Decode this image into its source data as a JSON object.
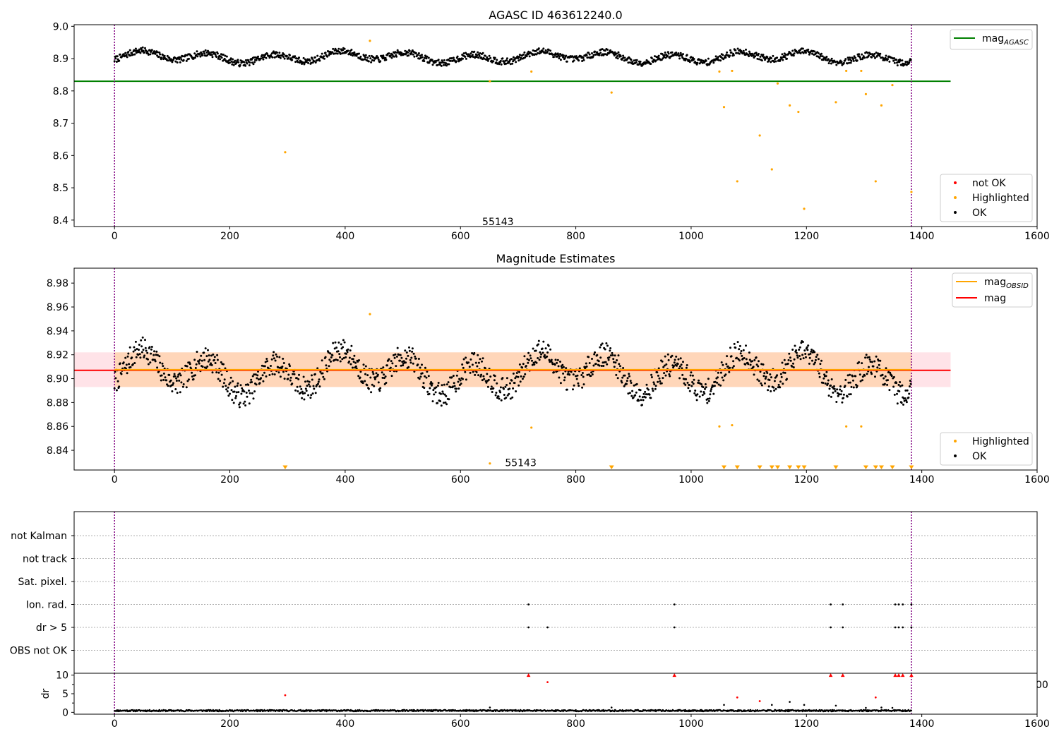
{
  "chart_data": [
    {
      "type": "scatter",
      "title": "AGASC ID 463612240.0",
      "xlim": [
        -70,
        1600
      ],
      "ylim": [
        8.38,
        9.005
      ],
      "xticks": [
        0,
        200,
        400,
        600,
        800,
        1000,
        1200,
        1400,
        1600
      ],
      "yticks": [
        8.4,
        8.5,
        8.6,
        8.7,
        8.8,
        8.9,
        9.0
      ],
      "ytick_labels": [
        "8.4",
        "8.5",
        "8.6",
        "8.7",
        "8.8",
        "8.9",
        "9.0"
      ],
      "vlines": [
        0,
        1382
      ],
      "hline": {
        "y": 8.83,
        "x": [
          -70,
          1450
        ],
        "color": "#008000"
      },
      "annotation": {
        "x": 665,
        "y": 8.395,
        "text": "55143"
      },
      "ok_series": {
        "name": "OK",
        "color": "#000000",
        "n": 1382,
        "base": 8.905
      },
      "highlighted": {
        "name": "Highlighted",
        "color": "#ffa500",
        "points": [
          [
            296,
            8.61
          ],
          [
            443,
            8.955
          ],
          [
            651,
            8.83
          ],
          [
            723,
            8.86
          ],
          [
            862,
            8.795
          ],
          [
            1049,
            8.86
          ],
          [
            1057,
            8.75
          ],
          [
            1071,
            8.862
          ],
          [
            1080,
            8.52
          ],
          [
            1119,
            8.662
          ],
          [
            1140,
            8.557
          ],
          [
            1150,
            8.823
          ],
          [
            1171,
            8.755
          ],
          [
            1186,
            8.735
          ],
          [
            1196,
            8.435
          ],
          [
            1251,
            8.765
          ],
          [
            1269,
            8.862
          ],
          [
            1295,
            8.862
          ],
          [
            1303,
            8.79
          ],
          [
            1320,
            8.52
          ],
          [
            1330,
            8.755
          ],
          [
            1349,
            8.818
          ],
          [
            1382,
            8.487
          ]
        ]
      },
      "legend_upper": [
        {
          "label": "mag",
          "sub": "AGASC",
          "color": "#008000"
        }
      ],
      "legend_lower": [
        {
          "label": "not OK",
          "color": "#ff0000"
        },
        {
          "label": "Highlighted",
          "color": "#ffa500"
        },
        {
          "label": "OK",
          "color": "#000000"
        }
      ]
    },
    {
      "type": "scatter",
      "title": "Magnitude Estimates",
      "xlim": [
        -70,
        1600
      ],
      "ylim": [
        8.8235,
        8.9925
      ],
      "xticks": [
        0,
        200,
        400,
        600,
        800,
        1000,
        1200,
        1400,
        1600
      ],
      "yticks": [
        8.84,
        8.86,
        8.88,
        8.9,
        8.92,
        8.94,
        8.96,
        8.98
      ],
      "ytick_labels": [
        "8.84",
        "8.86",
        "8.88",
        "8.90",
        "8.92",
        "8.94",
        "8.96",
        "8.98"
      ],
      "vlines": [
        0,
        1382
      ],
      "band_outer": {
        "y": [
          8.893,
          8.922
        ],
        "x": [
          -70,
          1450
        ],
        "color": "#ffc0cb"
      },
      "band_inner": {
        "y": [
          8.893,
          8.922
        ],
        "x": [
          0,
          1382
        ],
        "color": "#ffa500"
      },
      "line_mag": {
        "y": 8.907,
        "color": "#ff0000"
      },
      "line_obsid": {
        "y": 8.9075,
        "color": "#ffa500"
      },
      "annotation": {
        "x": 665,
        "y": 8.829,
        "text": "55143"
      },
      "ok_series": {
        "name": "OK",
        "color": "#000000",
        "n": 1382,
        "base": 8.905
      },
      "highlighted": {
        "name": "Highlighted",
        "color": "#ffa500",
        "points": [
          [
            443,
            8.954
          ],
          [
            651,
            8.829
          ],
          [
            723,
            8.859
          ],
          [
            1049,
            8.86
          ],
          [
            1071,
            8.861
          ],
          [
            1269,
            8.86
          ],
          [
            1295,
            8.86
          ]
        ]
      },
      "low_markers": [
        296,
        862,
        1057,
        1080,
        1119,
        1140,
        1150,
        1171,
        1186,
        1196,
        1251,
        1303,
        1320,
        1330,
        1349,
        1382
      ],
      "legend_upper": [
        {
          "label": "mag",
          "sub": "OBSID",
          "color": "#ffa500"
        },
        {
          "label": "mag",
          "sub": "",
          "color": "#ff0000"
        }
      ],
      "legend_lower": [
        {
          "label": "Highlighted",
          "color": "#ffa500"
        },
        {
          "label": "OK",
          "color": "#000000"
        }
      ]
    },
    {
      "type": "scatter",
      "title": "",
      "xlim": [
        -70,
        1600
      ],
      "vlines": [
        0,
        1382
      ],
      "categories": [
        "not Kalman",
        "not track",
        "Sat. pixel.",
        "Ion. rad.",
        "dr > 5",
        "OBS not OK"
      ],
      "flags": {
        "Ion. rad.": [
          718,
          971,
          1242,
          1263,
          1354,
          1360,
          1367,
          1382
        ],
        "dr > 5": [
          718,
          751,
          971,
          1242,
          1263,
          1354,
          1360,
          1367,
          1382
        ]
      }
    },
    {
      "type": "scatter",
      "title": "",
      "ylabel": "dr",
      "xlim": [
        -70,
        1600
      ],
      "ylim": [
        -0.5,
        10.5
      ],
      "xticks": [
        0,
        200,
        400,
        600,
        800,
        1000,
        1200,
        1400,
        1600
      ],
      "yticks": [
        0,
        5,
        10
      ],
      "ytick_labels": [
        "0",
        "5",
        "10"
      ],
      "vlines": [
        0,
        1382
      ],
      "clip_overlay_text": "00",
      "dr_ok_extra": [
        [
          651,
          1.3
        ],
        [
          862,
          1.3
        ],
        [
          1057,
          2.0
        ],
        [
          1140,
          2.0
        ],
        [
          1171,
          2.8
        ],
        [
          1196,
          2.0
        ],
        [
          1251,
          1.8
        ],
        [
          1303,
          1.2
        ],
        [
          1330,
          1.3
        ],
        [
          1349,
          1.2
        ]
      ],
      "dr_notok": [
        [
          296,
          4.6
        ],
        [
          751,
          8.1
        ],
        [
          1080,
          4.0
        ],
        [
          1119,
          3.0
        ],
        [
          1320,
          4.0
        ]
      ],
      "dr_capped": [
        718,
        971,
        1242,
        1263,
        1354,
        1360,
        1367,
        1382
      ]
    }
  ]
}
